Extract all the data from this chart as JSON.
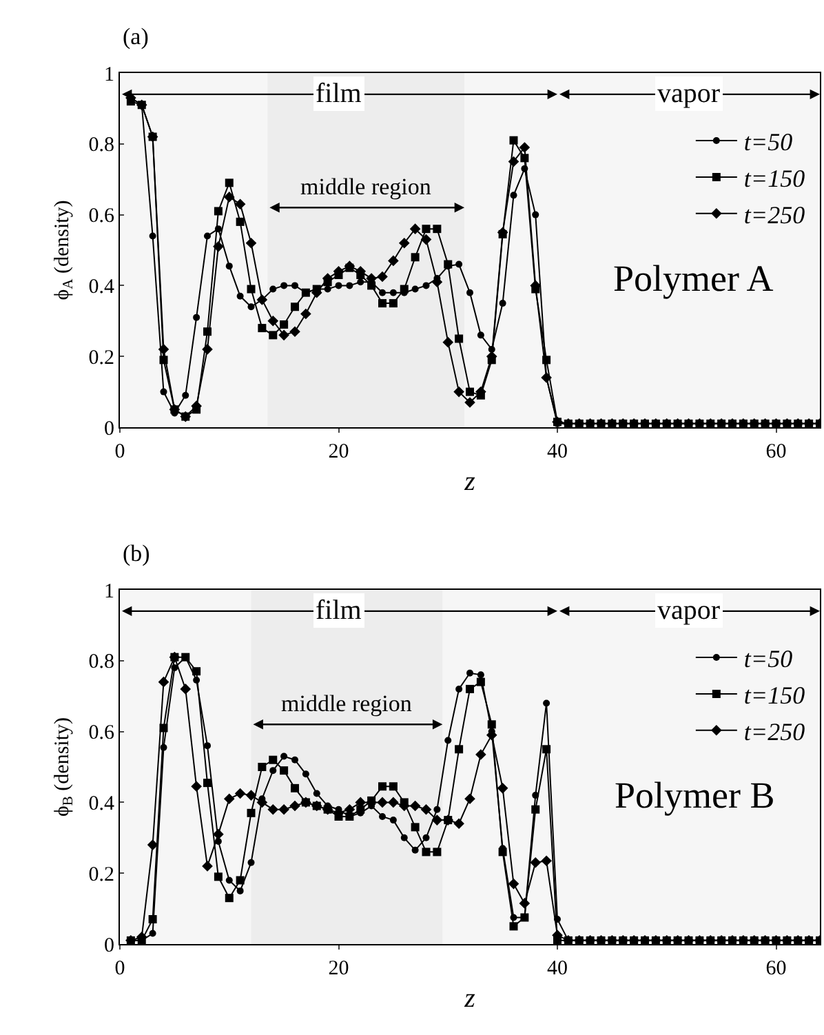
{
  "chart_data": [
    {
      "type": "line",
      "xlabel": "z",
      "ylabel": "ϕ$_{A}$ (density)",
      "annotations": [
        "(a)",
        "Polymer A"
      ],
      "bands": [
        {
          "axis": "x",
          "from": 0,
          "to": 40,
          "label": "film"
        },
        {
          "axis": "x",
          "from": 40,
          "to": 64,
          "label": "vapor"
        },
        {
          "axis": "x",
          "from": 13.5,
          "to": 31.5,
          "label": "middle region"
        }
      ],
      "x": [
        1,
        2,
        3,
        4,
        5,
        6,
        7,
        8,
        9,
        10,
        11,
        12,
        13,
        14,
        15,
        16,
        17,
        18,
        19,
        20,
        21,
        22,
        23,
        24,
        25,
        26,
        27,
        28,
        29,
        30,
        31,
        32,
        33,
        34,
        35,
        36,
        37,
        38,
        39,
        40,
        41,
        42,
        43,
        44,
        45,
        46,
        47,
        48,
        49,
        50,
        51,
        52,
        53,
        54,
        55,
        56,
        57,
        58,
        59,
        60,
        61,
        62,
        63,
        64
      ],
      "series": [
        {
          "name": "t=50",
          "color": "#000000",
          "marker": "circle",
          "values": [
            0.93,
            0.91,
            0.54,
            0.1,
            0.04,
            0.09,
            0.31,
            0.54,
            0.56,
            0.455,
            0.37,
            0.34,
            0.36,
            0.39,
            0.4,
            0.4,
            0.38,
            0.39,
            0.39,
            0.4,
            0.4,
            0.41,
            0.41,
            0.38,
            0.38,
            0.38,
            0.39,
            0.4,
            0.42,
            0.455,
            0.46,
            0.38,
            0.26,
            0.22,
            0.35,
            0.655,
            0.73,
            0.6,
            0.14,
            0.01,
            0.01,
            0.01,
            0.01,
            0.01,
            0.01,
            0.01,
            0.01,
            0.01,
            0.01,
            0.01,
            0.01,
            0.01,
            0.01,
            0.01,
            0.01,
            0.01,
            0.01,
            0.01,
            0.01,
            0.01,
            0.01,
            0.01,
            0.01,
            0.01
          ]
        },
        {
          "name": "t=150",
          "color": "#000000",
          "marker": "square",
          "values": [
            0.92,
            0.91,
            0.82,
            0.19,
            0.05,
            0.03,
            0.05,
            0.27,
            0.61,
            0.69,
            0.58,
            0.39,
            0.28,
            0.26,
            0.29,
            0.34,
            0.38,
            0.39,
            0.41,
            0.43,
            0.45,
            0.43,
            0.4,
            0.35,
            0.35,
            0.39,
            0.48,
            0.56,
            0.56,
            0.46,
            0.25,
            0.1,
            0.09,
            0.19,
            0.545,
            0.81,
            0.76,
            0.39,
            0.19,
            0.015,
            0.01,
            0.01,
            0.01,
            0.01,
            0.01,
            0.01,
            0.01,
            0.01,
            0.01,
            0.01,
            0.01,
            0.01,
            0.01,
            0.01,
            0.01,
            0.01,
            0.01,
            0.01,
            0.01,
            0.01,
            0.01,
            0.01,
            0.01,
            0.01
          ]
        },
        {
          "name": "t=250",
          "color": "#000000",
          "marker": "diamond",
          "values": [
            0.93,
            0.91,
            0.82,
            0.22,
            0.05,
            0.03,
            0.06,
            0.22,
            0.51,
            0.65,
            0.63,
            0.52,
            0.36,
            0.3,
            0.26,
            0.27,
            0.32,
            0.38,
            0.42,
            0.44,
            0.455,
            0.44,
            0.42,
            0.425,
            0.47,
            0.52,
            0.56,
            0.53,
            0.41,
            0.24,
            0.1,
            0.07,
            0.1,
            0.2,
            0.55,
            0.75,
            0.79,
            0.4,
            0.14,
            0.015,
            0.01,
            0.01,
            0.01,
            0.01,
            0.01,
            0.01,
            0.01,
            0.01,
            0.01,
            0.01,
            0.01,
            0.01,
            0.01,
            0.01,
            0.01,
            0.01,
            0.01,
            0.01,
            0.01,
            0.01,
            0.01,
            0.01,
            0.01,
            0.01
          ]
        }
      ],
      "xlim": [
        0,
        64
      ],
      "xticks": [
        0,
        20,
        40,
        60
      ],
      "ylim": [
        0,
        1
      ],
      "yticks": [
        0,
        0.2,
        0.4,
        0.6,
        0.8,
        1
      ],
      "grid": false,
      "legend": "top right"
    },
    {
      "type": "line",
      "xlabel": "z",
      "ylabel": "ϕ$_{B}$ (density)",
      "annotations": [
        "(b)",
        "Polymer B"
      ],
      "bands": [
        {
          "axis": "x",
          "from": 0,
          "to": 40,
          "label": "film"
        },
        {
          "axis": "x",
          "from": 40,
          "to": 64,
          "label": "vapor"
        },
        {
          "axis": "x",
          "from": 12,
          "to": 29.5,
          "label": "middle region"
        }
      ],
      "x": [
        1,
        2,
        3,
        4,
        5,
        6,
        7,
        8,
        9,
        10,
        11,
        12,
        13,
        14,
        15,
        16,
        17,
        18,
        19,
        20,
        21,
        22,
        23,
        24,
        25,
        26,
        27,
        28,
        29,
        30,
        31,
        32,
        33,
        34,
        35,
        36,
        37,
        38,
        39,
        40,
        41,
        42,
        43,
        44,
        45,
        46,
        47,
        48,
        49,
        50,
        51,
        52,
        53,
        54,
        55,
        56,
        57,
        58,
        59,
        60,
        61,
        62,
        63,
        64
      ],
      "series": [
        {
          "name": "t=250",
          "color": "#000000",
          "marker": "diamond",
          "values": [
            0.01,
            0.02,
            0.28,
            0.74,
            0.81,
            0.72,
            0.445,
            0.22,
            0.31,
            0.41,
            0.425,
            0.42,
            0.4,
            0.38,
            0.38,
            0.39,
            0.4,
            0.39,
            0.38,
            0.37,
            0.38,
            0.4,
            0.4,
            0.4,
            0.4,
            0.39,
            0.39,
            0.38,
            0.35,
            0.35,
            0.34,
            0.41,
            0.535,
            0.59,
            0.44,
            0.17,
            0.115,
            0.23,
            0.235,
            0.025,
            0.01,
            0.01,
            0.01,
            0.01,
            0.01,
            0.01,
            0.01,
            0.01,
            0.01,
            0.01,
            0.01,
            0.01,
            0.01,
            0.01,
            0.01,
            0.01,
            0.01,
            0.01,
            0.01,
            0.01,
            0.01,
            0.01,
            0.01,
            0.01
          ]
        },
        {
          "name": "t=150",
          "color": "#000000",
          "marker": "square",
          "values": [
            0.01,
            0.01,
            0.07,
            0.61,
            0.81,
            0.81,
            0.77,
            0.455,
            0.19,
            0.13,
            0.18,
            0.37,
            0.5,
            0.52,
            0.49,
            0.44,
            0.4,
            0.39,
            0.38,
            0.36,
            0.36,
            0.38,
            0.405,
            0.445,
            0.445,
            0.4,
            0.33,
            0.26,
            0.26,
            0.35,
            0.55,
            0.72,
            0.74,
            0.62,
            0.26,
            0.05,
            0.075,
            0.38,
            0.55,
            0.01,
            0.01,
            0.01,
            0.01,
            0.01,
            0.01,
            0.01,
            0.01,
            0.01,
            0.01,
            0.01,
            0.01,
            0.01,
            0.01,
            0.01,
            0.01,
            0.01,
            0.01,
            0.01,
            0.01,
            0.01,
            0.01,
            0.01,
            0.01,
            0.01
          ]
        },
        {
          "name": "t=50",
          "color": "#000000",
          "marker": "circle",
          "values": [
            0.01,
            0.01,
            0.03,
            0.555,
            0.78,
            0.81,
            0.745,
            0.56,
            0.29,
            0.18,
            0.15,
            0.23,
            0.41,
            0.49,
            0.53,
            0.52,
            0.48,
            0.425,
            0.39,
            0.38,
            0.36,
            0.37,
            0.39,
            0.36,
            0.35,
            0.3,
            0.265,
            0.3,
            0.38,
            0.575,
            0.72,
            0.765,
            0.76,
            0.6,
            0.27,
            0.075,
            0.075,
            0.42,
            0.68,
            0.07,
            0.01,
            0.01,
            0.01,
            0.01,
            0.01,
            0.01,
            0.01,
            0.01,
            0.01,
            0.01,
            0.01,
            0.01,
            0.01,
            0.01,
            0.01,
            0.01,
            0.01,
            0.01,
            0.01,
            0.01,
            0.01,
            0.01,
            0.01,
            0.01
          ]
        }
      ],
      "xlim": [
        0,
        64
      ],
      "xticks": [
        0,
        20,
        40,
        60
      ],
      "ylim": [
        0,
        1
      ],
      "yticks": [
        0,
        0.2,
        0.4,
        0.6,
        0.8,
        1
      ],
      "grid": false,
      "legend": "top right"
    }
  ]
}
